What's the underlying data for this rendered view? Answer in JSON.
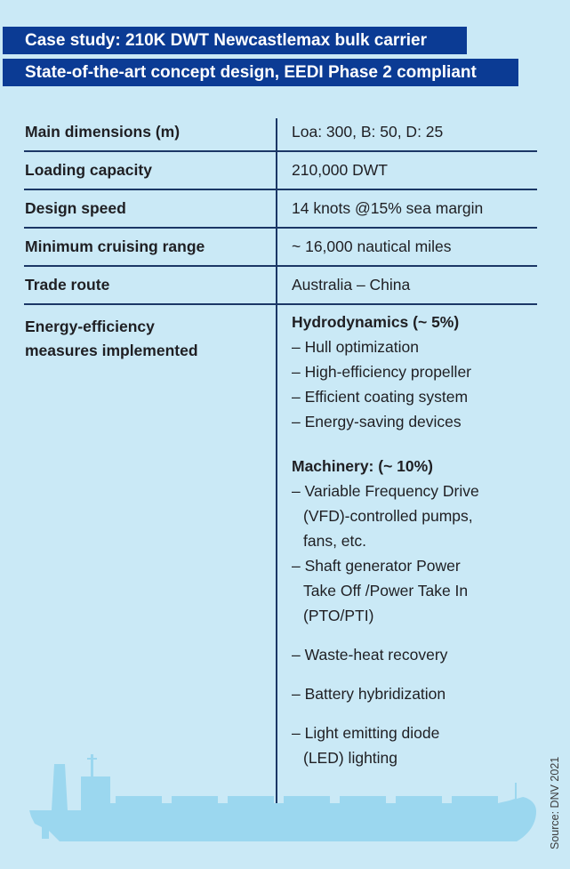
{
  "colors": {
    "page_bg": "#cae9f6",
    "banner_bg": "#0b3b94",
    "banner_text": "#ffffff",
    "rule": "#1b3766",
    "text": "#1f1f23",
    "ship": "#9bd7ef",
    "source_text": "#3a3a3a"
  },
  "banners": [
    {
      "text": "Case study: 210K DWT Newcastlemax bulk carrier"
    },
    {
      "text": "State-of-the-art concept design, EEDI Phase 2 compliant"
    }
  ],
  "spec_table": {
    "rows": [
      {
        "label": "Main dimensions (m)",
        "value": "Loa: 300, B: 50, D: 25"
      },
      {
        "label": "Loading capacity",
        "value": "210,000 DWT"
      },
      {
        "label": "Design speed",
        "value": "14 knots @15% sea margin"
      },
      {
        "label": "Minimum cruising range",
        "value": "~ 16,000 nautical miles"
      },
      {
        "label": "Trade route",
        "value": "Australia – China"
      }
    ]
  },
  "measures": {
    "label": "Energy-efficiency measures implemented",
    "groups": [
      {
        "heading": "Hydrodynamics (~ 5%)",
        "items": [
          {
            "text": "– Hull optimization",
            "spaced": false
          },
          {
            "text": "– High-efficiency propeller",
            "spaced": false
          },
          {
            "text": "– Efficient coating system",
            "spaced": false
          },
          {
            "text": "– Energy-saving devices",
            "spaced": false
          }
        ]
      },
      {
        "heading": "Machinery: (~ 10%)",
        "items": [
          {
            "text": "– Variable Frequency Drive\n(VFD)-controlled pumps,\nfans, etc.",
            "spaced": false
          },
          {
            "text": "– Shaft generator Power\nTake Off /Power Take In\n(PTO/PTI)",
            "spaced": false
          },
          {
            "text": "– Waste-heat recovery",
            "spaced": true
          },
          {
            "text": "– Battery hybridization",
            "spaced": true
          },
          {
            "text": "– Light emitting diode\n(LED) lighting",
            "spaced": true
          }
        ]
      }
    ]
  },
  "source_note": "Source: DNV 2021",
  "icons": {
    "ship": "bulk-carrier-ship-silhouette"
  }
}
